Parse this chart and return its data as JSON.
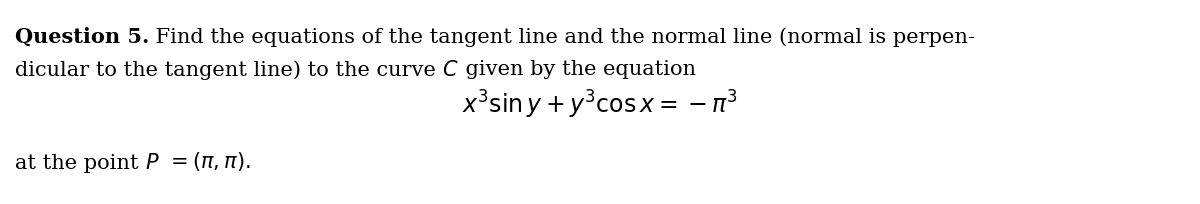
{
  "background_color": "#ffffff",
  "fontsize_text": 15,
  "fontsize_eq": 17,
  "line1_bold": "Question 5.",
  "line1_rest": " Find the equations of the tangent line and the normal line (normal is perpen-",
  "line2_part1": "dicular to the tangent line) to the curve ",
  "line2_C": "C",
  "line2_part2": " given by the equation",
  "equation": "$x^3 \\sin y + y^3 \\cos x = -\\pi^3$",
  "line3_part1": "at the point ",
  "line3_P": "P",
  "line3_part2": "$= (\\pi, \\pi).$"
}
